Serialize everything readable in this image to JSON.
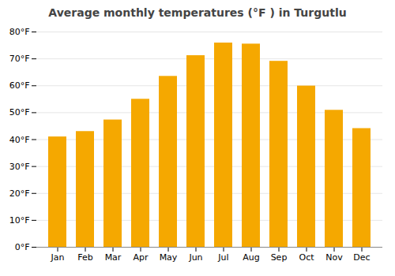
{
  "chart_data": {
    "type": "bar",
    "title": "Average monthly temperatures (°F ) in Turgutlu",
    "categories": [
      "Jan",
      "Feb",
      "Mar",
      "Apr",
      "May",
      "Jun",
      "Jul",
      "Aug",
      "Sep",
      "Oct",
      "Nov",
      "Dec"
    ],
    "values": [
      41.0,
      43.0,
      47.3,
      55.0,
      63.5,
      71.2,
      75.9,
      75.5,
      69.1,
      59.9,
      50.9,
      44.1
    ],
    "color": "#F5A800",
    "ylim": [
      0,
      80
    ],
    "yticks": [
      {
        "value": 0,
        "label": "0°F"
      },
      {
        "value": 10,
        "label": "10°F"
      },
      {
        "value": 20,
        "label": "20°F"
      },
      {
        "value": 30,
        "label": "30°F"
      },
      {
        "value": 40,
        "label": "40°F"
      },
      {
        "value": 50,
        "label": "50°F"
      },
      {
        "value": 60,
        "label": "60°F"
      },
      {
        "value": 70,
        "label": "70°F"
      },
      {
        "value": 80,
        "label": "80°F"
      }
    ],
    "grid": true
  }
}
